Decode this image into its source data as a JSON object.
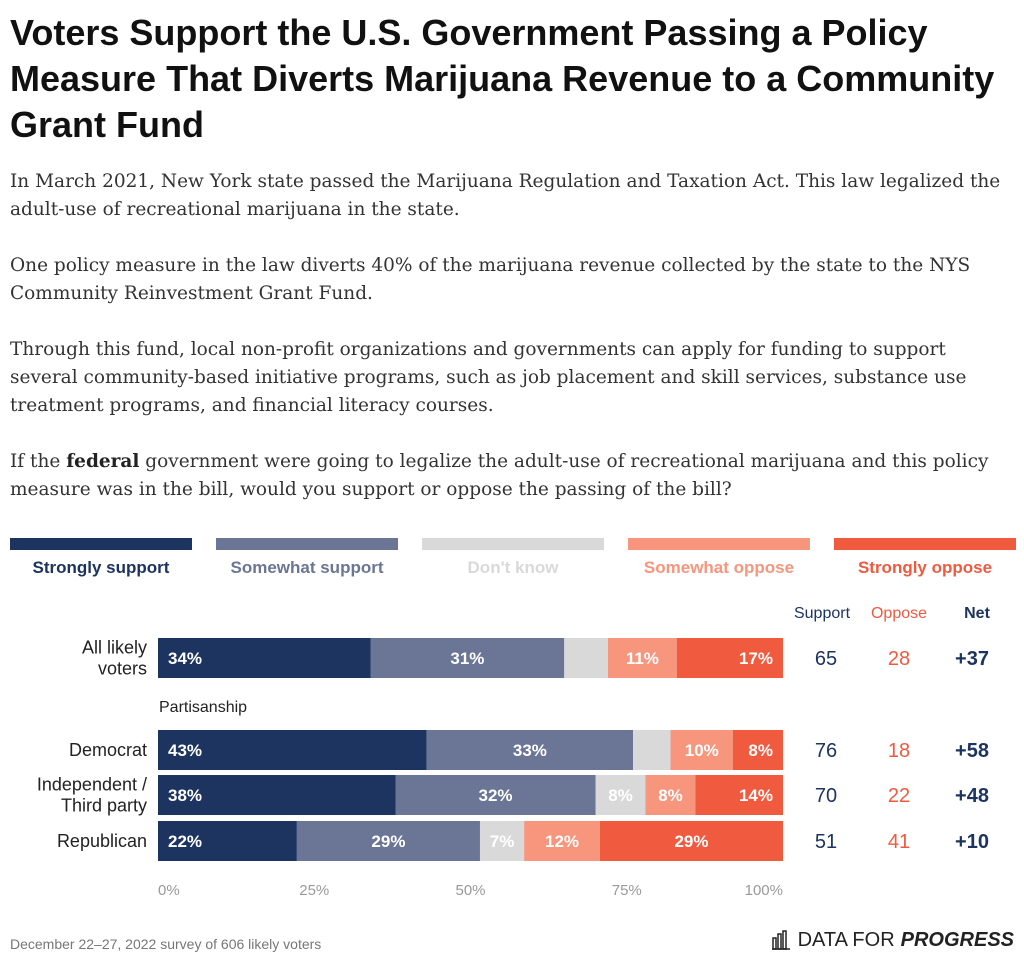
{
  "title": "Voters Support the U.S. Government Passing a Policy Measure That Diverts Marijuana Revenue to a Community Grant Fund",
  "description": {
    "p1": "In March 2021, New York state passed the Marijuana Regulation and Taxation Act. This law legalized the adult-use of recreational marijuana in the state.",
    "p2": "One policy measure in the law diverts 40% of the marijuana revenue collected by the state to the NYS Community Reinvestment Grant Fund.",
    "p3": "Through this fund, local non-profit organizations and governments can apply for funding to support several community-based initiative programs, such as job placement and skill services, substance use treatment programs, and financial literacy courses.",
    "p4_pre": "If the ",
    "p4_bold": "federal",
    "p4_post": " government were going to legalize the adult-use of recreational marijuana and this policy measure was in the bill, would you support or oppose the passing of the bill?"
  },
  "legend": [
    {
      "label": "Strongly support",
      "color": "#1d3461"
    },
    {
      "label": "Somewhat support",
      "color": "#6b7595"
    },
    {
      "label": "Don't know",
      "color": "#d9d9d9"
    },
    {
      "label": "Somewhat oppose",
      "color": "#f7957d"
    },
    {
      "label": "Strongly oppose",
      "color": "#f05a3f"
    }
  ],
  "columns": {
    "support": "Support",
    "oppose": "Oppose",
    "net": "Net"
  },
  "colors": {
    "support": "#1d3461",
    "oppose": "#f05a3f",
    "net": "#1d3461",
    "axis": "#999999"
  },
  "chart_data": {
    "type": "bar",
    "orientation": "horizontal",
    "stacked": true,
    "categories": [
      "All likely voters",
      "Democrat",
      "Independent / Third party",
      "Republican"
    ],
    "group_label": "Partisanship",
    "series": [
      {
        "name": "Strongly support",
        "values": [
          34,
          43,
          38,
          22
        ]
      },
      {
        "name": "Somewhat support",
        "values": [
          31,
          33,
          32,
          29
        ]
      },
      {
        "name": "Don't know",
        "values": [
          7,
          6,
          8,
          7
        ]
      },
      {
        "name": "Somewhat oppose",
        "values": [
          11,
          10,
          8,
          12
        ]
      },
      {
        "name": "Strongly oppose",
        "values": [
          17,
          8,
          14,
          29
        ]
      }
    ],
    "labels": [
      [
        "34%",
        "31%",
        "",
        "11%",
        "17%"
      ],
      [
        "43%",
        "33%",
        "",
        "10%",
        "8%"
      ],
      [
        "38%",
        "32%",
        "8%",
        "8%",
        "14%"
      ],
      [
        "22%",
        "29%",
        "7%",
        "12%",
        "29%"
      ]
    ],
    "support": [
      65,
      76,
      70,
      51
    ],
    "oppose": [
      28,
      18,
      22,
      41
    ],
    "net": [
      "+37",
      "+58",
      "+48",
      "+10"
    ],
    "xlim": [
      0,
      100
    ],
    "xticks": [
      "0%",
      "25%",
      "50%",
      "75%",
      "100%"
    ],
    "grid": false
  },
  "footer": {
    "source": "December 22–27, 2022 survey of 606 likely voters",
    "brand_light": "DATA FOR",
    "brand_bold": "PROGRESS"
  }
}
